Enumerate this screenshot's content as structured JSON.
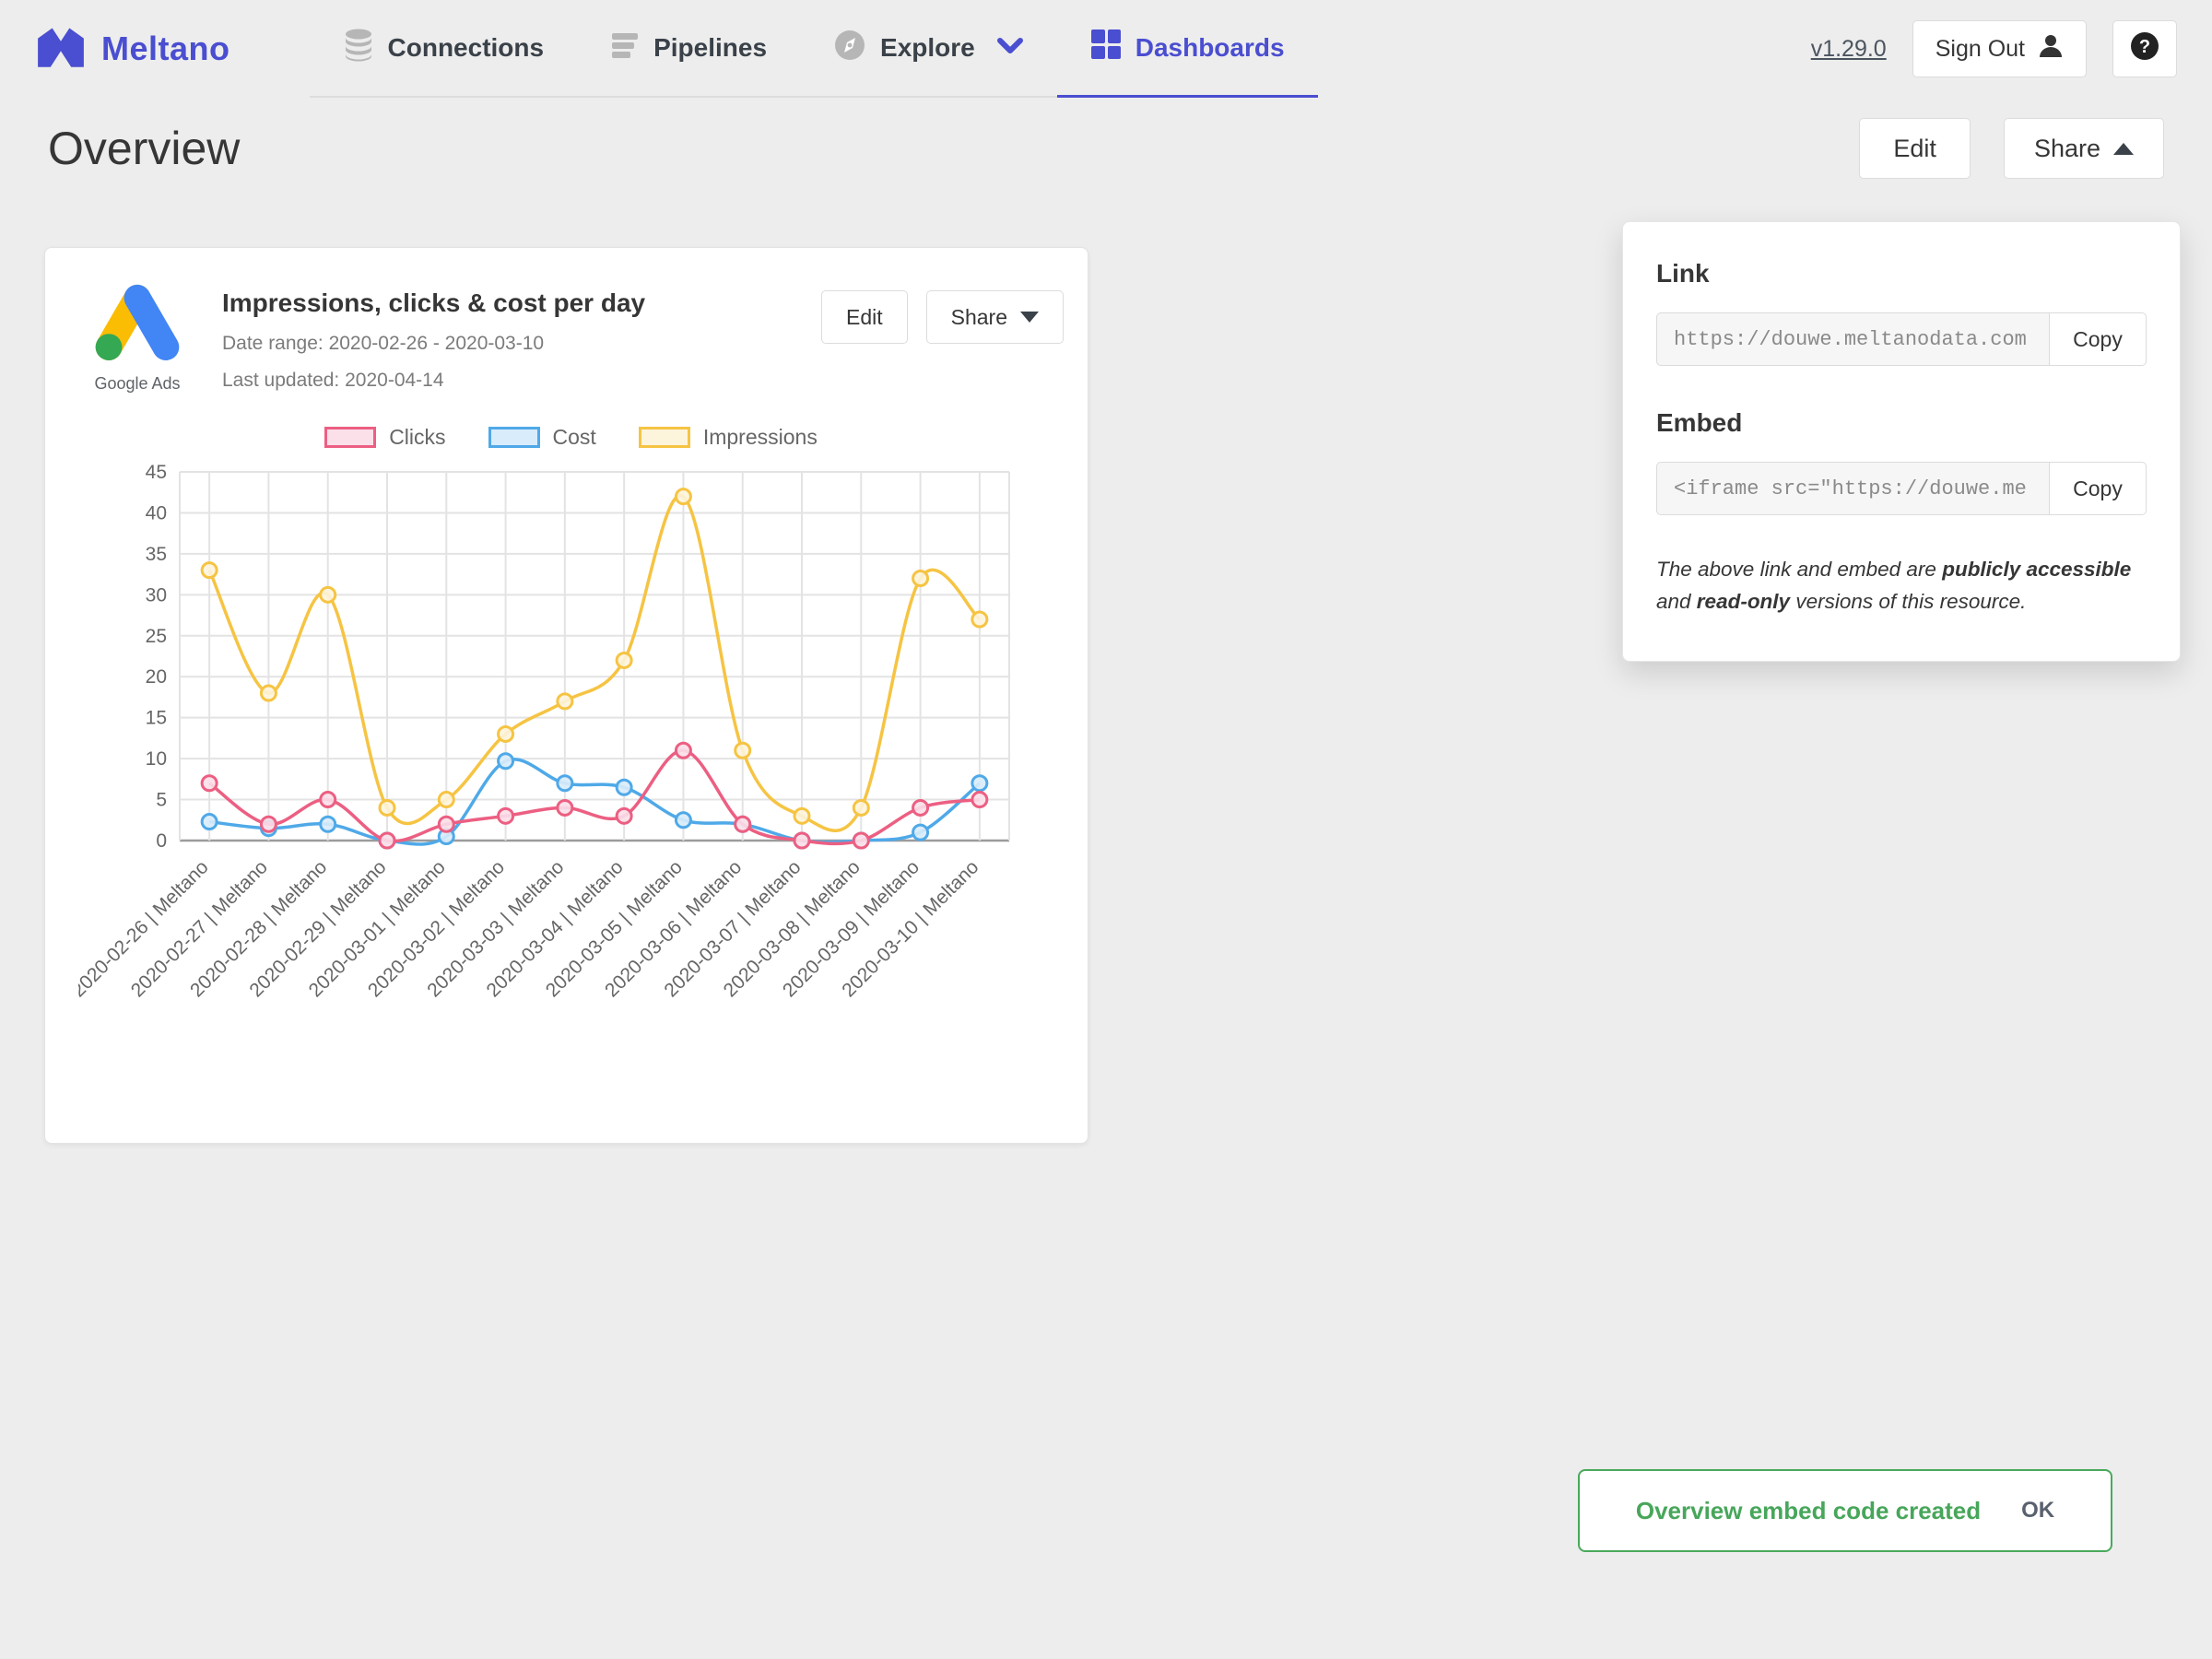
{
  "nav": {
    "brand": "Meltano",
    "items": [
      {
        "label": "Connections"
      },
      {
        "label": "Pipelines"
      },
      {
        "label": "Explore"
      },
      {
        "label": "Dashboards"
      }
    ],
    "version": "v1.29.0",
    "sign_out_label": "Sign Out"
  },
  "page": {
    "title": "Overview",
    "edit_label": "Edit",
    "share_label": "Share"
  },
  "card": {
    "source_caption": "Google Ads",
    "title": "Impressions, clicks & cost per day",
    "date_range": "Date range: 2020-02-26 - 2020-03-10",
    "last_updated": "Last updated: 2020-04-14",
    "edit_label": "Edit",
    "share_label": "Share"
  },
  "share_panel": {
    "link_heading": "Link",
    "link_value": "https://douwe.meltanodata.com",
    "copy_label": "Copy",
    "embed_heading": "Embed",
    "embed_value": "<iframe src=\"https://douwe.me",
    "note": {
      "part1": "The above link and embed are ",
      "bold1": "publicly accessible",
      "part2": " and ",
      "bold2": "read-only",
      "part3": " versions of this resource."
    }
  },
  "toast": {
    "message": "Overview embed code created",
    "ok_label": "OK"
  },
  "chart_data": {
    "type": "line",
    "title": "Impressions, clicks & cost per day",
    "x": [
      "2020-02-26 | Meltano",
      "2020-02-27 | Meltano",
      "2020-02-28 | Meltano",
      "2020-02-29 | Meltano",
      "2020-03-01 | Meltano",
      "2020-03-02 | Meltano",
      "2020-03-03 | Meltano",
      "2020-03-04 | Meltano",
      "2020-03-05 | Meltano",
      "2020-03-06 | Meltano",
      "2020-03-07 | Meltano",
      "2020-03-08 | Meltano",
      "2020-03-09 | Meltano",
      "2020-03-10 | Meltano"
    ],
    "series": [
      {
        "name": "Clicks",
        "color": "#EC5F82",
        "fill": "#FBDFE9",
        "values": [
          7,
          2,
          5,
          0,
          2,
          3,
          4,
          3,
          11,
          2,
          0,
          0,
          4,
          5
        ]
      },
      {
        "name": "Cost",
        "color": "#4FA9E8",
        "fill": "#D9ECFB",
        "values": [
          2.3,
          1.5,
          2,
          0,
          0.5,
          9.7,
          7,
          6.5,
          2.5,
          2,
          0,
          0,
          1,
          7
        ]
      },
      {
        "name": "Impressions",
        "color": "#F6C443",
        "fill": "#FDF4DC",
        "values": [
          33,
          18,
          30,
          4,
          5,
          13,
          17,
          22,
          42,
          11,
          3,
          4,
          32,
          27
        ]
      }
    ],
    "ylim": [
      0,
      45
    ],
    "ytick_step": 5,
    "grid": true,
    "legend_position": "top"
  },
  "colors": {
    "brand": "#4A4ED0",
    "toast_green": "#47a65a"
  }
}
